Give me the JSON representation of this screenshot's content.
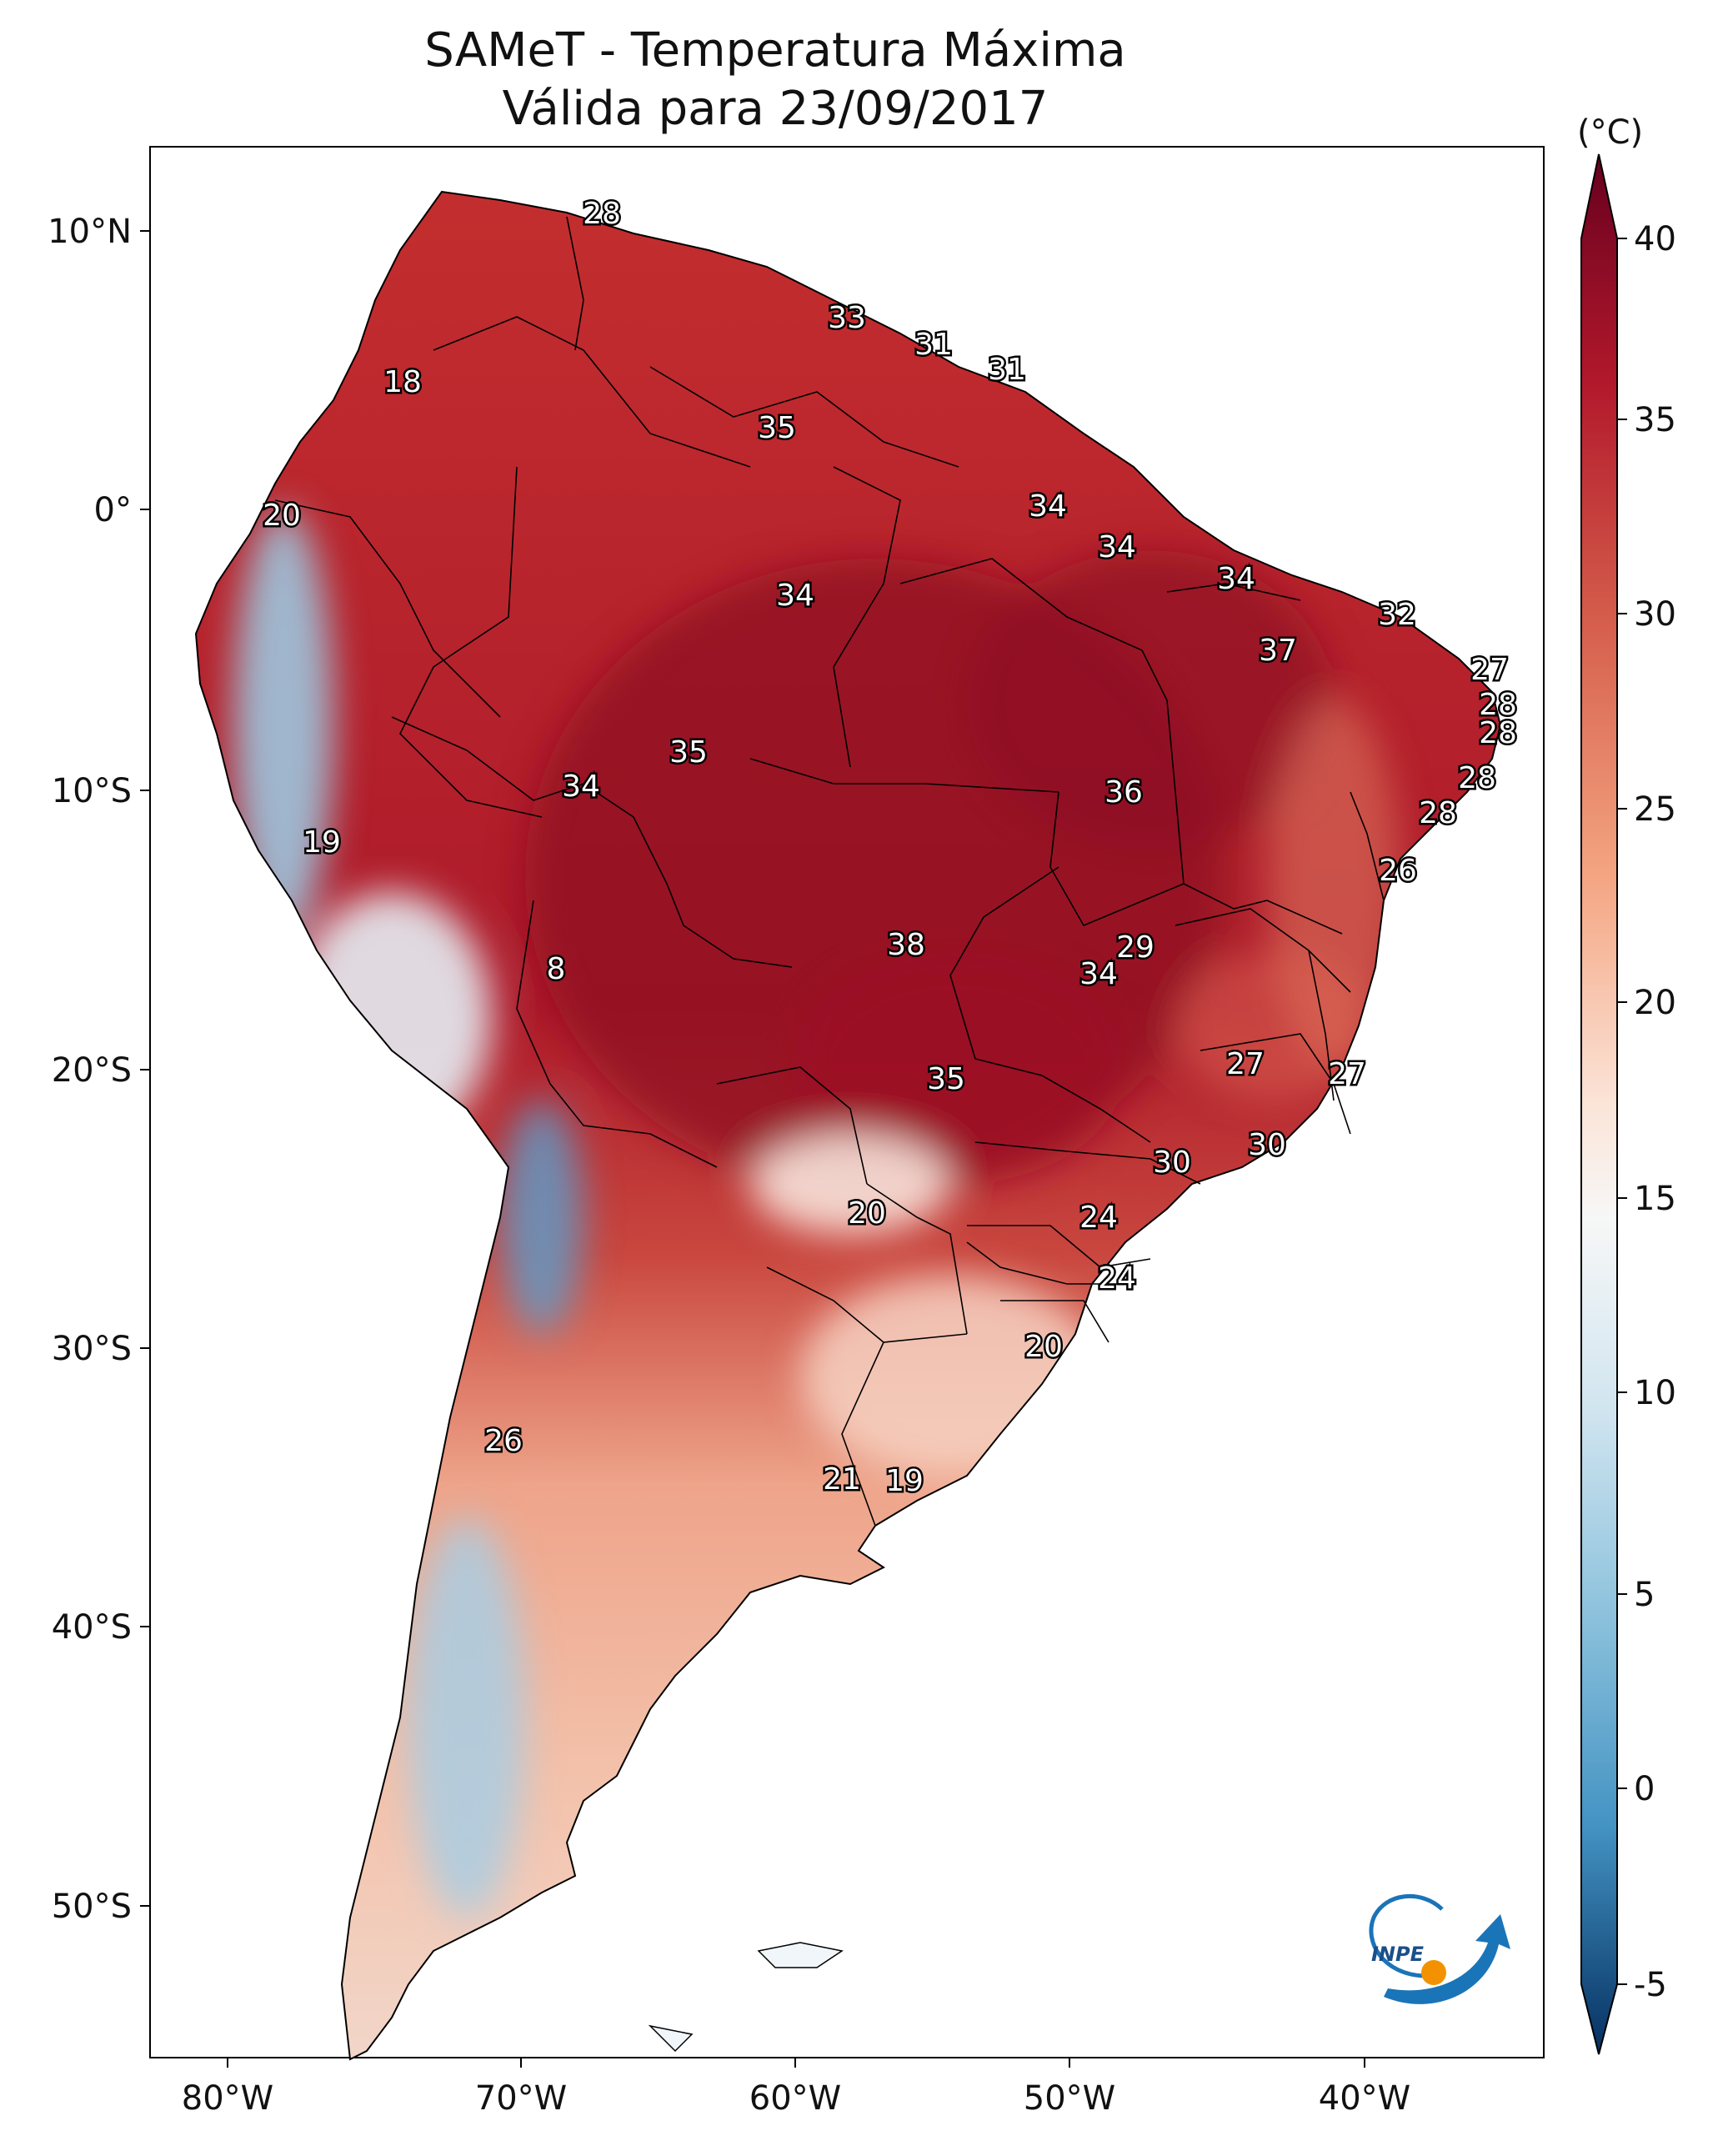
{
  "title": {
    "line1": "SAMeT - Temperatura Máxima",
    "line2": "Válida para 23/09/2017"
  },
  "map": {
    "lon_ticks": [
      "80°W",
      "70°W",
      "60°W",
      "50°W",
      "40°W"
    ],
    "lat_ticks": [
      "10°N",
      "0°",
      "10°S",
      "20°S",
      "30°S",
      "40°S",
      "50°S"
    ],
    "labels": [
      "28",
      "33",
      "31",
      "31",
      "18",
      "35",
      "20",
      "34",
      "34",
      "34",
      "34",
      "32",
      "37",
      "27",
      "28",
      "28",
      "28",
      "28",
      "35",
      "34",
      "36",
      "19",
      "26",
      "8",
      "38",
      "29",
      "34",
      "27",
      "27",
      "35",
      "30",
      "30",
      "20",
      "24",
      "24",
      "20",
      "26",
      "21",
      "19"
    ],
    "logo_text": "INPE"
  },
  "colorbar": {
    "unit": "(°C)",
    "ticks": [
      "40",
      "35",
      "30",
      "25",
      "20",
      "15",
      "10",
      "5",
      "0",
      "-5"
    ],
    "colors": {
      "min": "#053061",
      "blue": "#2166ac",
      "lightblue": "#92c5de",
      "white": "#f7f7f7",
      "salmon": "#f4a582",
      "red": "#d6604d",
      "darkred": "#b2182b",
      "max": "#67001f"
    }
  }
}
